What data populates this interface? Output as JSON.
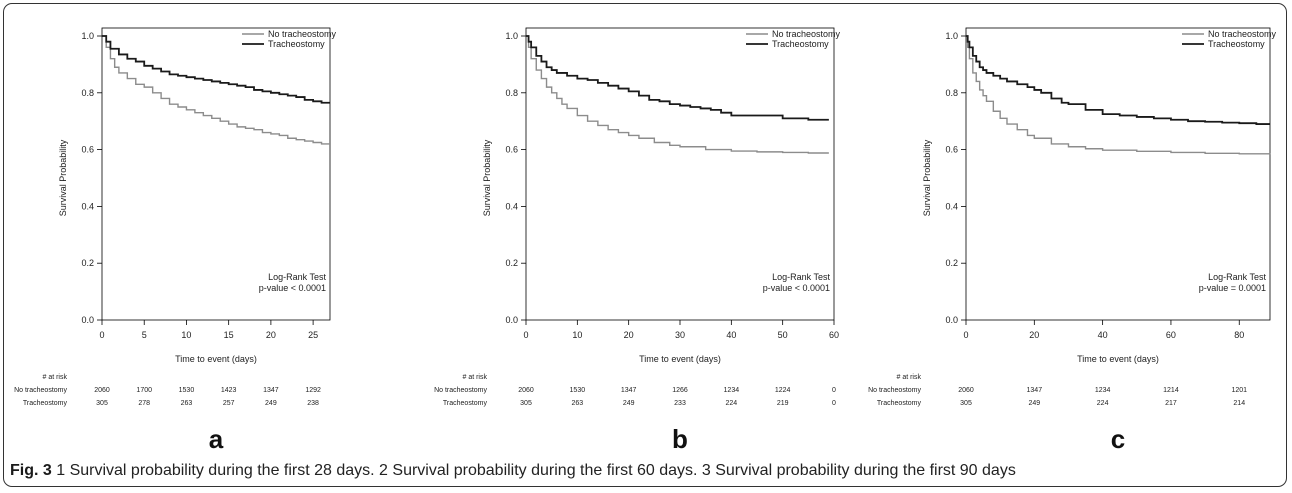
{
  "charts": [
    {
      "panel_label": "a",
      "chart_data": {
        "type": "line",
        "xlabel": "Time to event (days)",
        "ylabel": "Survival Probability",
        "xlim": [
          0,
          27
        ],
        "ylim": [
          0,
          1
        ],
        "x_ticks": [
          0,
          5,
          10,
          15,
          20,
          25
        ],
        "y_ticks": [
          "0.0",
          "0.2",
          "0.4",
          "0.6",
          "0.8",
          "1.0"
        ],
        "legend": {
          "placement": "top-right",
          "entries": [
            "No tracheostomy",
            "Tracheostomy"
          ]
        },
        "annotation": [
          "Log-Rank Test",
          "p-value < 0.0001"
        ],
        "series": [
          {
            "name": "No tracheostomy",
            "color": "#8c8c8c",
            "x": [
              0,
              0.5,
              1,
              1.5,
              2,
              3,
              4,
              5,
              6,
              7,
              8,
              9,
              10,
              11,
              12,
              13,
              14,
              15,
              16,
              17,
              18,
              19,
              20,
              21,
              22,
              23,
              24,
              25,
              26,
              27
            ],
            "y": [
              1.0,
              0.96,
              0.92,
              0.89,
              0.87,
              0.85,
              0.83,
              0.82,
              0.8,
              0.78,
              0.76,
              0.75,
              0.74,
              0.73,
              0.72,
              0.71,
              0.7,
              0.69,
              0.68,
              0.675,
              0.67,
              0.66,
              0.655,
              0.65,
              0.64,
              0.635,
              0.63,
              0.625,
              0.62,
              0.62
            ]
          },
          {
            "name": "Tracheostomy",
            "color": "#1a1a1a",
            "x": [
              0,
              0.5,
              1,
              2,
              3,
              4,
              5,
              6,
              7,
              8,
              9,
              10,
              11,
              12,
              13,
              14,
              15,
              16,
              17,
              18,
              19,
              20,
              21,
              22,
              23,
              24,
              25,
              26,
              27
            ],
            "y": [
              1.0,
              0.98,
              0.955,
              0.935,
              0.92,
              0.91,
              0.895,
              0.885,
              0.875,
              0.865,
              0.86,
              0.855,
              0.85,
              0.845,
              0.84,
              0.835,
              0.83,
              0.825,
              0.82,
              0.81,
              0.805,
              0.8,
              0.795,
              0.79,
              0.785,
              0.775,
              0.77,
              0.765,
              0.765
            ]
          }
        ]
      },
      "risk_table": {
        "header": "# at risk",
        "times": [
          0,
          5,
          10,
          15,
          20,
          25
        ],
        "rows": [
          {
            "label": "No tracheostomy",
            "values": [
              "2060",
              "1700",
              "1530",
              "1423",
              "1347",
              "1292"
            ]
          },
          {
            "label": "Tracheostomy",
            "values": [
              "305",
              "278",
              "263",
              "257",
              "249",
              "238"
            ]
          }
        ]
      }
    },
    {
      "panel_label": "b",
      "chart_data": {
        "type": "line",
        "xlabel": "Time to event (days)",
        "ylabel": "Survival Probability",
        "xlim": [
          0,
          60
        ],
        "ylim": [
          0,
          1
        ],
        "x_ticks": [
          0,
          10,
          20,
          30,
          40,
          50,
          60
        ],
        "y_ticks": [
          "0.0",
          "0.2",
          "0.4",
          "0.6",
          "0.8",
          "1.0"
        ],
        "legend": {
          "placement": "top-right",
          "entries": [
            "No tracheostomy",
            "Tracheostomy"
          ]
        },
        "annotation": [
          "Log-Rank Test",
          "p-value < 0.0001"
        ],
        "series": [
          {
            "name": "No tracheostomy",
            "color": "#8c8c8c",
            "x": [
              0,
              0.5,
              1,
              2,
              3,
              4,
              5,
              6,
              7,
              8,
              10,
              12,
              14,
              16,
              18,
              20,
              22,
              25,
              28,
              30,
              35,
              40,
              45,
              50,
              55,
              59
            ],
            "y": [
              1.0,
              0.96,
              0.92,
              0.88,
              0.85,
              0.82,
              0.8,
              0.78,
              0.76,
              0.745,
              0.72,
              0.7,
              0.685,
              0.67,
              0.66,
              0.65,
              0.64,
              0.625,
              0.615,
              0.61,
              0.6,
              0.595,
              0.592,
              0.59,
              0.588,
              0.588
            ]
          },
          {
            "name": "Tracheostomy",
            "color": "#1a1a1a",
            "x": [
              0,
              0.5,
              1,
              2,
              3,
              4,
              5,
              6,
              8,
              10,
              12,
              14,
              16,
              18,
              20,
              22,
              24,
              26,
              28,
              30,
              32,
              34,
              36,
              38,
              40,
              45,
              50,
              55,
              59
            ],
            "y": [
              1.0,
              0.98,
              0.96,
              0.93,
              0.91,
              0.89,
              0.88,
              0.87,
              0.86,
              0.85,
              0.845,
              0.835,
              0.825,
              0.815,
              0.805,
              0.79,
              0.775,
              0.77,
              0.76,
              0.755,
              0.75,
              0.745,
              0.74,
              0.73,
              0.72,
              0.72,
              0.71,
              0.705,
              0.705
            ]
          }
        ]
      },
      "risk_table": {
        "header": "# at risk",
        "times": [
          0,
          10,
          20,
          30,
          40,
          50,
          60
        ],
        "rows": [
          {
            "label": "No tracheostomy",
            "values": [
              "2060",
              "1530",
              "1347",
              "1266",
              "1234",
              "1224",
              "0"
            ]
          },
          {
            "label": "Tracheostomy",
            "values": [
              "305",
              "263",
              "249",
              "233",
              "224",
              "219",
              "0"
            ]
          }
        ]
      }
    },
    {
      "panel_label": "c",
      "chart_data": {
        "type": "line",
        "xlabel": "Time to event (days)",
        "ylabel": "Survival Probability",
        "xlim": [
          0,
          89
        ],
        "ylim": [
          0,
          1
        ],
        "x_ticks": [
          0,
          20,
          40,
          60,
          80
        ],
        "y_ticks": [
          "0.0",
          "0.2",
          "0.4",
          "0.6",
          "0.8",
          "1.0"
        ],
        "legend": {
          "placement": "top-right",
          "entries": [
            "No tracheostomy",
            "Tracheostomy"
          ]
        },
        "annotation": [
          "Log-Rank Test",
          "p-value = 0.0001"
        ],
        "series": [
          {
            "name": "No tracheostomy",
            "color": "#8c8c8c",
            "x": [
              0,
              0.5,
              1,
              2,
              3,
              4,
              5,
              6,
              8,
              10,
              12,
              15,
              18,
              20,
              25,
              30,
              35,
              40,
              50,
              60,
              70,
              80,
              89
            ],
            "y": [
              1.0,
              0.96,
              0.92,
              0.87,
              0.84,
              0.81,
              0.79,
              0.77,
              0.735,
              0.71,
              0.69,
              0.67,
              0.65,
              0.64,
              0.62,
              0.61,
              0.603,
              0.598,
              0.594,
              0.59,
              0.587,
              0.585,
              0.583
            ]
          },
          {
            "name": "Tracheostomy",
            "color": "#1a1a1a",
            "x": [
              0,
              0.5,
              1,
              2,
              3,
              4,
              5,
              6,
              8,
              10,
              12,
              15,
              18,
              20,
              22,
              25,
              28,
              30,
              35,
              40,
              45,
              50,
              55,
              60,
              65,
              70,
              75,
              80,
              85,
              89
            ],
            "y": [
              1.0,
              0.98,
              0.96,
              0.93,
              0.91,
              0.89,
              0.88,
              0.87,
              0.86,
              0.85,
              0.84,
              0.83,
              0.82,
              0.81,
              0.8,
              0.78,
              0.765,
              0.76,
              0.74,
              0.725,
              0.72,
              0.715,
              0.71,
              0.705,
              0.7,
              0.698,
              0.695,
              0.693,
              0.69,
              0.69
            ]
          }
        ]
      },
      "risk_table": {
        "header": "# at risk",
        "times": [
          0,
          20,
          40,
          60,
          80
        ],
        "rows": [
          {
            "label": "No tracheostomy",
            "values": [
              "2060",
              "1347",
              "1234",
              "1214",
              "1201"
            ]
          },
          {
            "label": "Tracheostomy",
            "values": [
              "305",
              "249",
              "224",
              "217",
              "214"
            ]
          }
        ]
      }
    }
  ],
  "caption": {
    "label": "Fig. 3",
    "text": " 1 Survival probability during the first 28 days. 2 Survival probability during the first 60 days. 3 Survival probability during the first 90 days"
  }
}
